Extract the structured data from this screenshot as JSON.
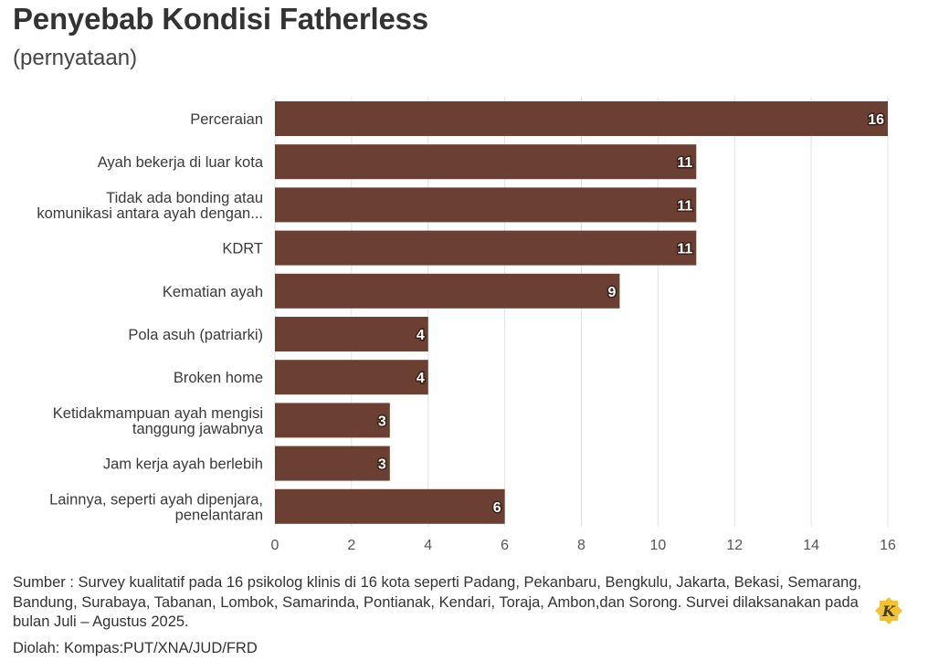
{
  "header": {
    "title": "Penyebab Kondisi Fatherless",
    "subtitle": "(pernyataan)"
  },
  "footer": {
    "source": "Sumber : Survey kualitatif pada 16 psikolog klinis di 16 kota seperti Padang, Pekanbaru, Bengkulu, Jakarta, Bekasi, Semarang, Bandung, Surabaya, Tabanan, Lombok, Samarinda, Pontianak, Kendari, Toraja, Ambon,dan Sorong. Survei dilaksanakan pada bulan Juli – Agustus 2025.",
    "credit": "Diolah: Kompas:PUT/XNA/JUD/FRD",
    "logo_letter": "K",
    "logo_icon": "kompas-logo-icon"
  },
  "colors": {
    "bar": "#6b4032",
    "grid": "#e3e3e3",
    "label_fill": "#ffffff",
    "label_stroke": "#3a2017",
    "logo_fill": "#f2c230"
  },
  "chart_data": {
    "type": "bar",
    "orientation": "horizontal",
    "title": "Penyebab Kondisi Fatherless",
    "subtitle": "(pernyataan)",
    "categories": [
      [
        "Perceraian"
      ],
      [
        "Ayah bekerja di luar kota"
      ],
      [
        "Tidak ada bonding atau",
        "komunikasi antara ayah dengan..."
      ],
      [
        "KDRT"
      ],
      [
        "Kematian ayah"
      ],
      [
        "Pola asuh (patriarki)"
      ],
      [
        "Broken home"
      ],
      [
        "Ketidakmampuan ayah mengisi",
        "tanggung jawabnya"
      ],
      [
        "Jam kerja ayah berlebih"
      ],
      [
        "Lainnya, seperti ayah dipenjara,",
        "penelantaran"
      ]
    ],
    "values": [
      16,
      11,
      11,
      11,
      9,
      4,
      4,
      3,
      3,
      6
    ],
    "xlim": [
      0,
      16
    ],
    "xticks": [
      0,
      2,
      4,
      6,
      8,
      10,
      12,
      14,
      16
    ],
    "grid": true,
    "data_labels": true
  }
}
